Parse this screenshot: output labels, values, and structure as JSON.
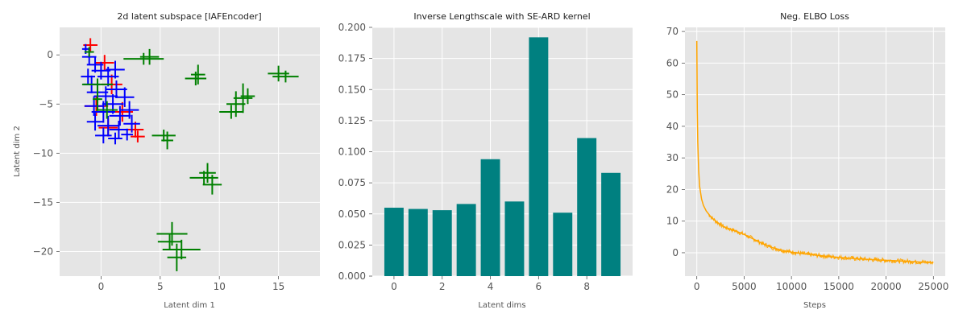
{
  "chart_data": [
    {
      "type": "scatter",
      "title": "2d latent subspace [IAFEncoder]",
      "xlabel": "Latent dim 1",
      "ylabel": "Latent dim 2",
      "xlim": [
        -3.5,
        18.5
      ],
      "ylim": [
        -22.5,
        2.8
      ],
      "xticks": [
        0,
        5,
        10,
        15
      ],
      "yticks": [
        0,
        -5,
        -10,
        -15,
        -20
      ],
      "grid": true,
      "marker": "errorbar-cross",
      "series": [
        {
          "color": "#ff0000",
          "points": [
            {
              "x": -0.9,
              "y": 1.0,
              "ex": 0.6,
              "ey": 0.7
            },
            {
              "x": 0.3,
              "y": -0.8,
              "ex": 0.8,
              "ey": 0.8
            },
            {
              "x": 0.9,
              "y": -3.0,
              "ex": 0.9,
              "ey": 1.0
            },
            {
              "x": -0.4,
              "y": -5.2,
              "ex": 1.0,
              "ey": 1.0
            },
            {
              "x": 1.8,
              "y": -5.8,
              "ex": 0.9,
              "ey": 1.0
            },
            {
              "x": 0.6,
              "y": -7.4,
              "ex": 0.8,
              "ey": 0.9
            },
            {
              "x": 2.9,
              "y": -7.6,
              "ex": 0.7,
              "ey": 0.8
            },
            {
              "x": 3.1,
              "y": -8.3,
              "ex": 0.6,
              "ey": 0.6
            }
          ]
        },
        {
          "color": "#0000ff",
          "points": [
            {
              "x": -1.3,
              "y": 0.6,
              "ex": 0.3,
              "ey": 0.5
            },
            {
              "x": -1.0,
              "y": -0.2,
              "ex": 0.6,
              "ey": 0.8
            },
            {
              "x": -0.5,
              "y": -1.0,
              "ex": 0.7,
              "ey": 0.8
            },
            {
              "x": 0.0,
              "y": -1.6,
              "ex": 0.8,
              "ey": 0.9
            },
            {
              "x": 0.6,
              "y": -2.2,
              "ex": 0.9,
              "ey": 1.0
            },
            {
              "x": 1.2,
              "y": -1.5,
              "ex": 0.8,
              "ey": 0.9
            },
            {
              "x": -0.8,
              "y": -3.0,
              "ex": 0.7,
              "ey": 0.9
            },
            {
              "x": -0.3,
              "y": -3.8,
              "ex": 0.9,
              "ey": 1.1
            },
            {
              "x": 0.4,
              "y": -4.2,
              "ex": 1.0,
              "ey": 1.0
            },
            {
              "x": 1.3,
              "y": -3.5,
              "ex": 0.9,
              "ey": 0.9
            },
            {
              "x": 2.0,
              "y": -4.3,
              "ex": 0.8,
              "ey": 1.0
            },
            {
              "x": -0.6,
              "y": -5.2,
              "ex": 0.8,
              "ey": 1.0
            },
            {
              "x": 0.2,
              "y": -5.8,
              "ex": 1.0,
              "ey": 1.1
            },
            {
              "x": 1.0,
              "y": -5.0,
              "ex": 0.9,
              "ey": 1.0
            },
            {
              "x": 1.6,
              "y": -6.2,
              "ex": 0.9,
              "ey": 1.0
            },
            {
              "x": 2.4,
              "y": -5.6,
              "ex": 0.8,
              "ey": 0.9
            },
            {
              "x": -0.5,
              "y": -6.8,
              "ex": 0.7,
              "ey": 0.9
            },
            {
              "x": 0.6,
              "y": -7.2,
              "ex": 0.9,
              "ey": 1.0
            },
            {
              "x": 1.5,
              "y": -7.6,
              "ex": 0.8,
              "ey": 0.9
            },
            {
              "x": 2.6,
              "y": -7.0,
              "ex": 0.7,
              "ey": 0.9
            },
            {
              "x": 0.2,
              "y": -8.2,
              "ex": 0.7,
              "ey": 0.8
            },
            {
              "x": 1.2,
              "y": -8.5,
              "ex": 0.6,
              "ey": 0.6
            },
            {
              "x": 2.2,
              "y": -8.1,
              "ex": 0.5,
              "ey": 0.6
            },
            {
              "x": -1.1,
              "y": -2.2,
              "ex": 0.6,
              "ey": 0.8
            }
          ]
        },
        {
          "color": "#008000",
          "points": [
            {
              "x": -1.0,
              "y": 0.3,
              "ex": 0.4,
              "ey": 0.5
            },
            {
              "x": -0.3,
              "y": -3.0,
              "ex": 1.3,
              "ey": 0.6
            },
            {
              "x": -0.3,
              "y": -4.5,
              "ex": 0.4,
              "ey": 1.2
            },
            {
              "x": 0.5,
              "y": -5.6,
              "ex": 0.9,
              "ey": 0.9
            },
            {
              "x": 3.6,
              "y": -0.4,
              "ex": 1.7,
              "ey": 0.6
            },
            {
              "x": 4.1,
              "y": -0.2,
              "ex": 0.8,
              "ey": 0.8
            },
            {
              "x": 8.0,
              "y": -2.4,
              "ex": 0.9,
              "ey": 0.7
            },
            {
              "x": 8.2,
              "y": -2.0,
              "ex": 0.6,
              "ey": 1.0
            },
            {
              "x": 15.6,
              "y": -2.2,
              "ex": 1.1,
              "ey": 0.6
            },
            {
              "x": 15.0,
              "y": -1.9,
              "ex": 0.9,
              "ey": 0.8
            },
            {
              "x": 12.0,
              "y": -4.4,
              "ex": 0.8,
              "ey": 1.5
            },
            {
              "x": 11.4,
              "y": -5.0,
              "ex": 0.8,
              "ey": 1.3
            },
            {
              "x": 12.4,
              "y": -4.2,
              "ex": 0.6,
              "ey": 0.8
            },
            {
              "x": 11.0,
              "y": -5.8,
              "ex": 1.0,
              "ey": 0.7
            },
            {
              "x": 5.3,
              "y": -8.2,
              "ex": 1.0,
              "ey": 0.6
            },
            {
              "x": 5.6,
              "y": -8.7,
              "ex": 0.5,
              "ey": 0.9
            },
            {
              "x": 8.7,
              "y": -12.5,
              "ex": 1.2,
              "ey": 0.7
            },
            {
              "x": 9.4,
              "y": -13.2,
              "ex": 0.8,
              "ey": 1.0
            },
            {
              "x": 9.0,
              "y": -12.0,
              "ex": 0.7,
              "ey": 1.0
            },
            {
              "x": 6.0,
              "y": -18.2,
              "ex": 1.3,
              "ey": 1.2
            },
            {
              "x": 6.8,
              "y": -19.8,
              "ex": 1.6,
              "ey": 1.0
            },
            {
              "x": 6.4,
              "y": -20.6,
              "ex": 0.8,
              "ey": 1.4
            },
            {
              "x": 5.8,
              "y": -19.0,
              "ex": 1.0,
              "ey": 0.8
            }
          ]
        }
      ]
    },
    {
      "type": "bar",
      "title": "Inverse Lengthscale with SE-ARD kernel",
      "xlabel": "Latent dims",
      "ylabel": "",
      "categories": [
        0,
        1,
        2,
        3,
        4,
        5,
        6,
        7,
        8,
        9
      ],
      "values": [
        0.055,
        0.054,
        0.053,
        0.058,
        0.094,
        0.06,
        0.192,
        0.051,
        0.111,
        0.083
      ],
      "xlim": [
        -0.9,
        9.9
      ],
      "ylim": [
        0,
        0.2
      ],
      "xticks": [
        0,
        2,
        4,
        6,
        8
      ],
      "yticks": [
        "0.000",
        "0.025",
        "0.050",
        "0.075",
        "0.100",
        "0.125",
        "0.150",
        "0.175",
        "0.200"
      ],
      "color": "#008080",
      "grid": true
    },
    {
      "type": "line",
      "title": "Neg. ELBO Loss",
      "xlabel": "Steps",
      "ylabel": "",
      "x": [
        0,
        50,
        100,
        200,
        300,
        500,
        700,
        1000,
        1500,
        2000,
        2500,
        3000,
        4000,
        5000,
        6000,
        7000,
        8000,
        9000,
        10000,
        12000,
        14000,
        16000,
        18000,
        20000,
        22000,
        24000,
        25000
      ],
      "y": [
        67,
        45,
        35,
        26,
        21,
        17,
        15,
        13.2,
        11.3,
        10.0,
        8.9,
        8.0,
        7.0,
        5.8,
        4.3,
        2.8,
        1.6,
        0.8,
        0.2,
        -0.6,
        -1.2,
        -1.7,
        -2.1,
        -2.4,
        -2.7,
        -3.0,
        -3.1
      ],
      "xlim": [
        -1250,
        26250
      ],
      "ylim": [
        -7.4,
        71.3
      ],
      "xticks": [
        0,
        5000,
        10000,
        15000,
        20000,
        25000
      ],
      "yticks": [
        0,
        10,
        20,
        30,
        40,
        50,
        60,
        70
      ],
      "color": "#ffa500",
      "grid": true
    }
  ]
}
